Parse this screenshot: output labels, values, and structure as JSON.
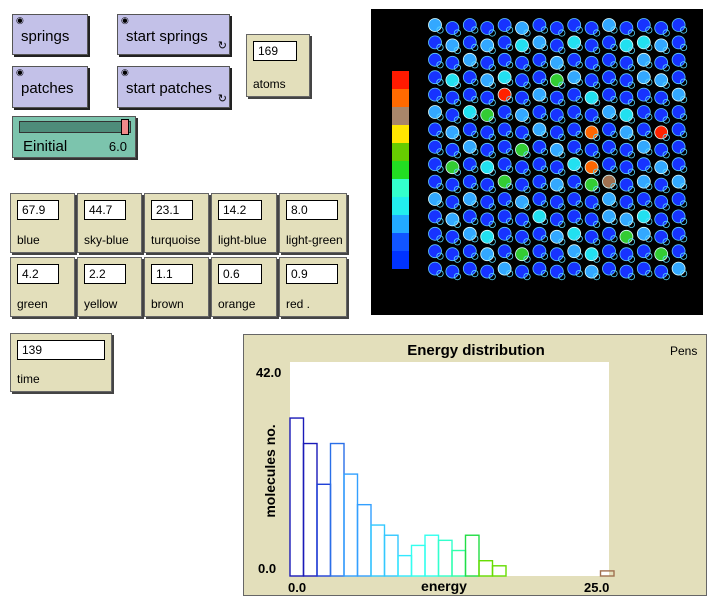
{
  "buttons": {
    "springs": "springs",
    "start_springs": "start springs",
    "patches": "patches",
    "start_patches": "start patches"
  },
  "monitors": {
    "atoms": {
      "value": "169",
      "label": "atoms"
    },
    "time": {
      "value": "139",
      "label": "time"
    },
    "colors": [
      {
        "value": "67.9",
        "label": "blue"
      },
      {
        "value": "44.7",
        "label": "sky-blue"
      },
      {
        "value": "23.1",
        "label": "turquoise"
      },
      {
        "value": "14.2",
        "label": "light-blue"
      },
      {
        "value": "8.0",
        "label": "light-green"
      },
      {
        "value": "4.2",
        "label": "green"
      },
      {
        "value": "2.2",
        "label": "yellow"
      },
      {
        "value": "1.1",
        "label": "brown"
      },
      {
        "value": "0.6",
        "label": "orange"
      },
      {
        "value": "0.9",
        "label": "red ."
      }
    ]
  },
  "slider": {
    "label": "Einitial",
    "value": "6.0",
    "level": 1.0
  },
  "world": {
    "legend_colors": [
      "#ff1a00",
      "#ff6a00",
      "#a8866a",
      "#ffe600",
      "#66cc00",
      "#22dd22",
      "#33ffcc",
      "#22eeee",
      "#22aaff",
      "#1155ff",
      "#0033ff"
    ],
    "molecule_colors": {
      "blue": "#1733ff",
      "sky": "#33a8ff",
      "cyan": "#22e0f0",
      "green": "#33cc33",
      "red": "#ff2200",
      "orange": "#ff6600",
      "brown": "#a07050"
    }
  },
  "plot": {
    "pens_label": "Pens",
    "chart_data": {
      "type": "bar",
      "title": "Energy distribution",
      "xlabel": "energy",
      "ylabel": "molecules no.",
      "xlim": [
        0.0,
        25.0
      ],
      "ylim": [
        0.0,
        42.0
      ],
      "x_tick_labels": [
        "0.0",
        "25.0"
      ],
      "y_tick_labels": [
        "42.0",
        "0.0"
      ],
      "bins": [
        {
          "x": 0,
          "value": 31,
          "color": "#1a1ab8"
        },
        {
          "x": 1,
          "value": 26,
          "color": "#1a1ab8"
        },
        {
          "x": 2,
          "value": 18,
          "color": "#1e3fd8"
        },
        {
          "x": 3,
          "value": 26,
          "color": "#2a6fe8"
        },
        {
          "x": 4,
          "value": 20,
          "color": "#33a0ff"
        },
        {
          "x": 5,
          "value": 14,
          "color": "#33a0ff"
        },
        {
          "x": 6,
          "value": 10,
          "color": "#33c8ff"
        },
        {
          "x": 7,
          "value": 8,
          "color": "#33c8ff"
        },
        {
          "x": 8,
          "value": 4,
          "color": "#33e8ff"
        },
        {
          "x": 9,
          "value": 6,
          "color": "#33ffee"
        },
        {
          "x": 10,
          "value": 8,
          "color": "#33ffee"
        },
        {
          "x": 11,
          "value": 7,
          "color": "#33ffcc"
        },
        {
          "x": 12,
          "value": 5,
          "color": "#33ffaa"
        },
        {
          "x": 13,
          "value": 8,
          "color": "#22dd44"
        },
        {
          "x": 14,
          "value": 3,
          "color": "#66dd00"
        },
        {
          "x": 15,
          "value": 2,
          "color": "#66dd00"
        },
        {
          "x": 16,
          "value": 0,
          "color": "#66dd00"
        },
        {
          "x": 17,
          "value": 0,
          "color": "#66dd00"
        },
        {
          "x": 18,
          "value": 0,
          "color": "#66dd00"
        },
        {
          "x": 19,
          "value": 0,
          "color": "#66dd00"
        },
        {
          "x": 20,
          "value": 0,
          "color": "#66dd00"
        },
        {
          "x": 21,
          "value": 0,
          "color": "#66dd00"
        },
        {
          "x": 22,
          "value": 0,
          "color": "#66dd00"
        },
        {
          "x": 23,
          "value": 1,
          "color": "#a07050"
        }
      ]
    }
  }
}
